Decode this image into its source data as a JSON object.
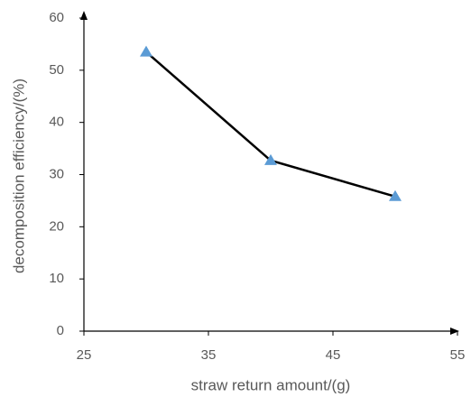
{
  "chart_data": {
    "type": "line",
    "x_label": "straw return amount/(g)",
    "y_label": "decomposition efficiency/(%)",
    "x": [
      30,
      40,
      50
    ],
    "values": [
      53.5,
      32.7,
      25.8
    ],
    "color": "#000000",
    "marker_color": "#5b9bd5",
    "xlim": [
      25,
      55
    ],
    "xticks": [
      25,
      35,
      45,
      55
    ],
    "ylim": [
      0,
      60
    ],
    "yticks": [
      0,
      10,
      20,
      30,
      40,
      50,
      60
    ],
    "grid": false
  }
}
